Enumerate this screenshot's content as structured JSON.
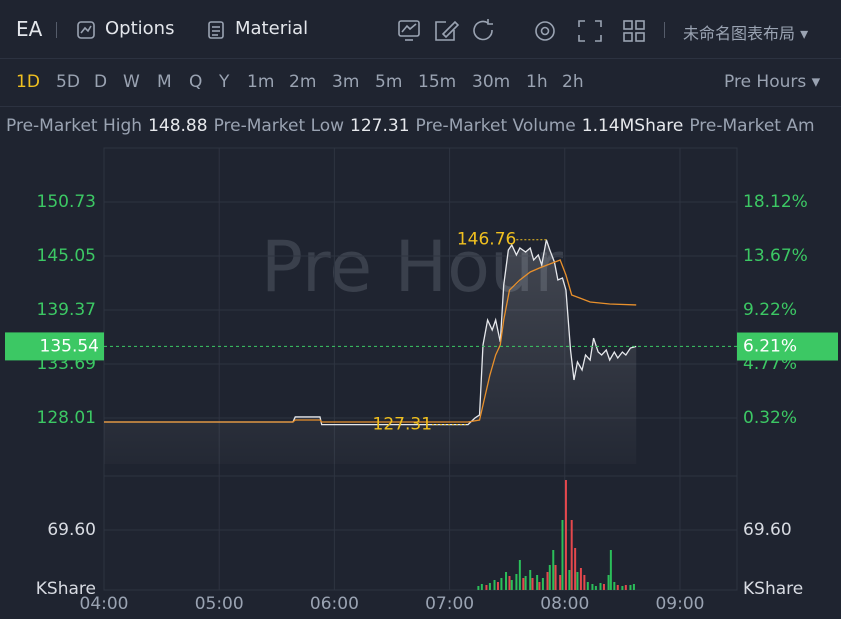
{
  "toolbar": {
    "symbol": "EA",
    "options": "Options",
    "material": "Material",
    "layout": "未命名图表布局"
  },
  "periods": {
    "items": [
      "1D",
      "5D",
      "D",
      "W",
      "M",
      "Q",
      "Y",
      "1m",
      "2m",
      "3m",
      "5m",
      "15m",
      "30m",
      "1h",
      "2h"
    ],
    "active": 0,
    "session": "Pre Hours"
  },
  "stats": [
    {
      "label": "Pre-Market High",
      "value": "148.88"
    },
    {
      "label": "Pre-Market Low",
      "value": "127.31"
    },
    {
      "label": "Pre-Market Volume",
      "value": "1.14MShare"
    },
    {
      "label": "Pre-Market Am"
    }
  ],
  "chart_data": {
    "type": "line",
    "watermark": "Pre Hour",
    "xlim": [
      4,
      9.495
    ],
    "xticks": [
      {
        "value": 4,
        "label": "04:00"
      },
      {
        "value": 5,
        "label": "05:00"
      },
      {
        "value": 6,
        "label": "06:00"
      },
      {
        "value": 7,
        "label": "07:00"
      },
      {
        "value": 8,
        "label": "08:00"
      },
      {
        "value": 9,
        "label": "09:00"
      }
    ],
    "ylim": [
      122.33,
      156.41
    ],
    "yticks": [
      150.73,
      145.05,
      139.37,
      133.69,
      128.01
    ],
    "y2lim": [
      -4.13,
      22.57
    ],
    "y2ticks": [
      {
        "value": 18.12,
        "label": "18.12%"
      },
      {
        "value": 13.67,
        "label": "13.67%"
      },
      {
        "value": 9.22,
        "label": "9.22%"
      },
      {
        "value": 4.77,
        "label": "4.77%"
      },
      {
        "value": 0.32,
        "label": "0.32%"
      }
    ],
    "grid": true,
    "series": [
      {
        "color": "#e6e8ec",
        "x": [
          4.0,
          5.64,
          5.66,
          5.875,
          5.89,
          7.16,
          7.22,
          7.26,
          7.29,
          7.33,
          7.37,
          7.4,
          7.44,
          7.47,
          7.51,
          7.54,
          7.58,
          7.61,
          7.66,
          7.7,
          7.73,
          7.77,
          7.8,
          7.84,
          7.87,
          7.91,
          7.94,
          7.98,
          8.01,
          8.05,
          8.08,
          8.11,
          8.15,
          8.18,
          8.22,
          8.25,
          8.29,
          8.32,
          8.36,
          8.39,
          8.43,
          8.46,
          8.5,
          8.53,
          8.57,
          8.62
        ],
        "values": [
          127.59,
          127.59,
          128.12,
          128.12,
          127.31,
          127.31,
          128.01,
          128.33,
          135.69,
          138.32,
          137.27,
          138.32,
          136.0,
          142.0,
          145.68,
          146.21,
          145.16,
          145.89,
          145.47,
          145.89,
          144.63,
          145.16,
          144.1,
          146.76,
          145.68,
          144.42,
          142.53,
          142.74,
          141.47,
          135.16,
          132.01,
          133.9,
          133.06,
          134.64,
          134.11,
          136.42,
          134.95,
          134.64,
          135.16,
          134.11,
          134.95,
          134.32,
          134.95,
          134.64,
          135.37,
          135.54
        ]
      },
      {
        "color": "#e8902c",
        "x": [
          4.0,
          5.64,
          5.66,
          5.875,
          5.89,
          7.16,
          7.26,
          7.3,
          7.35,
          7.4,
          7.44,
          7.47,
          7.52,
          7.61,
          7.7,
          7.78,
          7.87,
          7.96,
          8.01,
          8.06,
          8.13,
          8.22,
          8.39,
          8.62
        ],
        "values": [
          127.59,
          127.59,
          127.8,
          127.8,
          127.59,
          127.59,
          127.8,
          129.9,
          132.53,
          134.64,
          135.69,
          138.32,
          141.47,
          142.53,
          143.37,
          143.79,
          144.21,
          144.63,
          143.05,
          140.95,
          140.63,
          140.21,
          140.0,
          139.9
        ]
      }
    ],
    "last": {
      "value": 135.54,
      "percent": 6.21,
      "percent_label": "6.21%",
      "color": "#3cc864"
    },
    "high": {
      "x": 7.84,
      "value": 146.76,
      "color": "#f0c020"
    },
    "low": {
      "x": 7.16,
      "value": 127.31,
      "color": "#f0c020"
    },
    "volume": {
      "ylim": [
        0,
        127.6
      ],
      "yticks": [
        {
          "value": 69.6,
          "label": "69.60"
        }
      ],
      "y2ticks": [
        {
          "value": 69.6,
          "label": "69.60"
        }
      ],
      "unit_label": "KShare",
      "x": [
        7.25,
        7.28,
        7.32,
        7.35,
        7.39,
        7.42,
        7.45,
        7.49,
        7.52,
        7.54,
        7.58,
        7.61,
        7.64,
        7.66,
        7.7,
        7.72,
        7.76,
        7.78,
        7.81,
        7.85,
        7.87,
        7.9,
        7.92,
        7.96,
        7.98,
        8.01,
        8.04,
        8.06,
        8.09,
        8.11,
        8.14,
        8.17,
        8.2,
        8.24,
        8.27,
        8.31,
        8.34,
        8.38,
        8.4,
        8.43,
        8.46,
        8.5,
        8.53,
        8.57,
        8.6
      ],
      "values": [
        4.64,
        6.96,
        5.8,
        8.12,
        11.6,
        9.28,
        13.92,
        20.88,
        16.24,
        11.6,
        18.56,
        34.8,
        13.92,
        16.24,
        23.2,
        13.92,
        17.4,
        9.28,
        13.92,
        20.88,
        29.0,
        46.4,
        29.0,
        17.4,
        81.2,
        127.6,
        23.2,
        81.2,
        48.72,
        20.88,
        25.52,
        17.4,
        9.28,
        6.96,
        4.64,
        8.12,
        6.96,
        17.4,
        46.4,
        9.28,
        5.8,
        4.64,
        5.8,
        5.8,
        6.96
      ],
      "colors": [
        "#2bbf5a",
        "#2bbf5a",
        "#e5484d",
        "#2bbf5a",
        "#2bbf5a",
        "#e5484d",
        "#2bbf5a",
        "#2bbf5a",
        "#e5484d",
        "#2bbf5a",
        "#2bbf5a",
        "#2bbf5a",
        "#e5484d",
        "#2bbf5a",
        "#2bbf5a",
        "#e5484d",
        "#2bbf5a",
        "#e5484d",
        "#2bbf5a",
        "#e5484d",
        "#2bbf5a",
        "#2bbf5a",
        "#e5484d",
        "#e5484d",
        "#2bbf5a",
        "#e5484d",
        "#2bbf5a",
        "#e5484d",
        "#e5484d",
        "#2bbf5a",
        "#e5484d",
        "#e5484d",
        "#2bbf5a",
        "#2bbf5a",
        "#2bbf5a",
        "#2bbf5a",
        "#e5484d",
        "#2bbf5a",
        "#2bbf5a",
        "#2bbf5a",
        "#e5484d",
        "#2bbf5a",
        "#e5484d",
        "#2bbf5a",
        "#2bbf5a"
      ]
    }
  }
}
